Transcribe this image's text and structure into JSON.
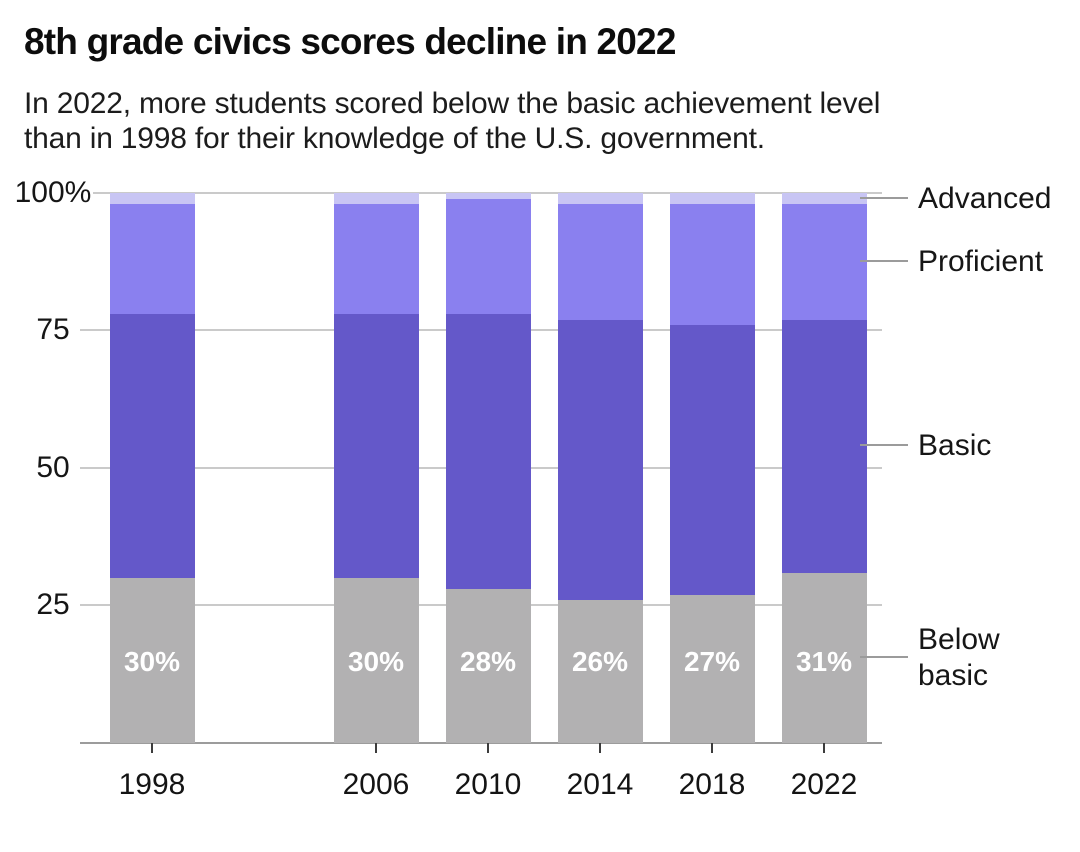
{
  "header": {
    "title": "8th grade civics scores decline in 2022",
    "subtitle_lines": [
      "In 2022, more students scored below the basic achievement level",
      "than in 1998 for their knowledge of the U.S. government."
    ]
  },
  "chart_data": {
    "type": "bar",
    "stacked": true,
    "unit": "percent",
    "title": "8th grade civics scores decline in 2022",
    "categories": [
      "1998",
      "2006",
      "2010",
      "2014",
      "2018",
      "2022"
    ],
    "series": [
      {
        "name": "Below basic",
        "color": "#b2b1b2",
        "values": [
          30,
          30,
          28,
          26,
          27,
          31
        ]
      },
      {
        "name": "Basic",
        "color": "#6458c9",
        "values": [
          48,
          48,
          50,
          51,
          49,
          46
        ]
      },
      {
        "name": "Proficient",
        "color": "#8a80ef",
        "values": [
          20,
          20,
          21,
          21,
          22,
          21
        ]
      },
      {
        "name": "Advanced",
        "color": "#c8c5f4",
        "values": [
          2,
          2,
          1,
          2,
          2,
          2
        ]
      }
    ],
    "bar_labels": [
      "30%",
      "30%",
      "28%",
      "26%",
      "27%",
      "31%"
    ],
    "y_axis": {
      "ticks": [
        "100%",
        "75",
        "50",
        "25"
      ],
      "tick_values": [
        100,
        75,
        50,
        25
      ],
      "range": [
        0,
        100
      ],
      "grid": true
    },
    "legend": {
      "position": "right",
      "labels": [
        "Advanced",
        "Proficient",
        "Basic",
        "Below basic"
      ]
    }
  }
}
